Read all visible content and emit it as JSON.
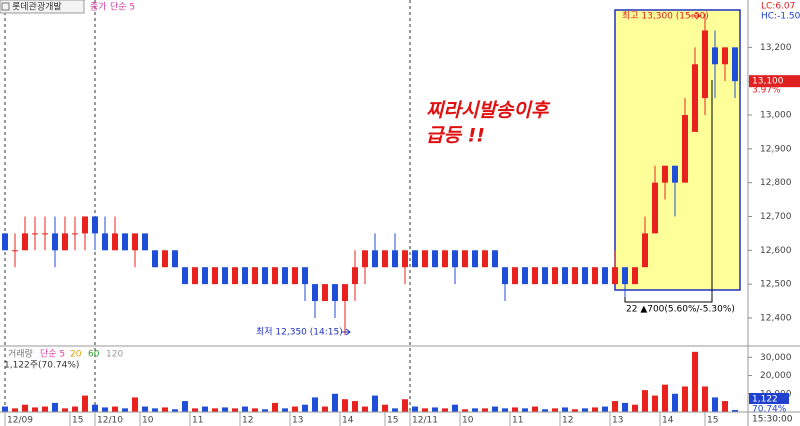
{
  "chart_data": {
    "type": "candlestick",
    "title": "롯데관광개발",
    "indicator": [
      "종가",
      "단순 5"
    ],
    "lc": "LC:6.07",
    "hc": "HC:-1.50",
    "open": [
      12650,
      12600,
      12600,
      12650,
      12650,
      12650,
      12600,
      12650,
      12650,
      12700,
      12650,
      12600,
      12650,
      12600,
      12650,
      12600,
      12550,
      12600,
      12550,
      12500,
      12550,
      12500,
      12550,
      12500,
      12550,
      12500,
      12550,
      12500,
      12550,
      12500,
      12550,
      12500,
      12450,
      12500,
      12450,
      12500,
      12550,
      12600,
      12550,
      12600,
      12550,
      12600,
      12550,
      12600,
      12550,
      12600,
      12550,
      12600,
      12550,
      12600,
      12550,
      12500,
      12550,
      12500,
      12550,
      12500,
      12550,
      12500,
      12550,
      12500,
      12550,
      12500,
      12550,
      12500,
      12550,
      12650,
      12800,
      12850,
      12800,
      12950,
      13050,
      13200,
      13150,
      13200
    ],
    "high": [
      12650,
      12650,
      12700,
      12700,
      12700,
      12700,
      12700,
      12700,
      12700,
      12700,
      12700,
      12700,
      12650,
      12650,
      12650,
      12600,
      12600,
      12600,
      12550,
      12550,
      12550,
      12550,
      12550,
      12550,
      12550,
      12550,
      12550,
      12550,
      12550,
      12550,
      12550,
      12500,
      12500,
      12500,
      12500,
      12600,
      12600,
      12650,
      12600,
      12650,
      12600,
      12600,
      12600,
      12600,
      12600,
      12600,
      12600,
      12600,
      12600,
      12600,
      12550,
      12550,
      12550,
      12550,
      12550,
      12550,
      12550,
      12550,
      12550,
      12550,
      12550,
      12600,
      12550,
      12550,
      12700,
      12850,
      12850,
      12850,
      13050,
      13200,
      13300,
      13250,
      13200,
      13200
    ],
    "low": [
      12600,
      12550,
      12600,
      12600,
      12600,
      12550,
      12600,
      12600,
      12600,
      12600,
      12600,
      12600,
      12600,
      12550,
      12600,
      12550,
      12550,
      12550,
      12500,
      12500,
      12500,
      12500,
      12500,
      12500,
      12500,
      12500,
      12500,
      12500,
      12500,
      12500,
      12450,
      12400,
      12450,
      12400,
      12350,
      12450,
      12500,
      12550,
      12550,
      12550,
      12500,
      12550,
      12550,
      12550,
      12550,
      12500,
      12550,
      12550,
      12550,
      12550,
      12450,
      12500,
      12500,
      12500,
      12500,
      12500,
      12500,
      12500,
      12500,
      12500,
      12500,
      12500,
      12450,
      12500,
      12550,
      12650,
      12750,
      12700,
      12800,
      12950,
      13000,
      13050,
      13100,
      13050
    ],
    "close": [
      12600,
      12600,
      12650,
      12650,
      12650,
      12600,
      12650,
      12650,
      12700,
      12650,
      12600,
      12650,
      12600,
      12650,
      12600,
      12550,
      12600,
      12550,
      12500,
      12550,
      12500,
      12550,
      12500,
      12550,
      12500,
      12550,
      12500,
      12550,
      12500,
      12550,
      12500,
      12450,
      12500,
      12450,
      12500,
      12550,
      12600,
      12550,
      12600,
      12550,
      12600,
      12550,
      12600,
      12550,
      12600,
      12550,
      12600,
      12550,
      12600,
      12550,
      12500,
      12550,
      12500,
      12550,
      12500,
      12550,
      12500,
      12550,
      12500,
      12550,
      12500,
      12550,
      12500,
      12550,
      12650,
      12800,
      12850,
      12800,
      13000,
      13150,
      13250,
      13150,
      13200,
      13100
    ],
    "up_color": "#e8231f",
    "down_color": "#1f4fd6",
    "xlim": [
      -0.5,
      74.3
    ],
    "xticks": [
      {
        "value": 0,
        "label": "12/09"
      },
      {
        "value": 6.5,
        "label": "15"
      },
      {
        "value": 9,
        "label": "12/10"
      },
      {
        "value": 13.5,
        "label": "10"
      },
      {
        "value": 18.5,
        "label": "11"
      },
      {
        "value": 23.5,
        "label": "12"
      },
      {
        "value": 28.5,
        "label": "13"
      },
      {
        "value": 33.5,
        "label": "14"
      },
      {
        "value": 38,
        "label": "15"
      },
      {
        "value": 40.5,
        "label": "12/11"
      },
      {
        "value": 45.5,
        "label": "10"
      },
      {
        "value": 50.5,
        "label": "11"
      },
      {
        "value": 55.5,
        "label": "12"
      },
      {
        "value": 60.5,
        "label": "13"
      },
      {
        "value": 65.5,
        "label": "14"
      },
      {
        "value": 70,
        "label": "15"
      }
    ],
    "ylim": [
      12320,
      13340
    ],
    "yticks": [
      {
        "value": 12400,
        "label": "12,400"
      },
      {
        "value": 12500,
        "label": "12,500"
      },
      {
        "value": 12600,
        "label": "12,600"
      },
      {
        "value": 12700,
        "label": "12,700"
      },
      {
        "value": 12800,
        "label": "12,800"
      },
      {
        "value": 12900,
        "label": "12,900"
      },
      {
        "value": 13000,
        "label": "13,000"
      },
      {
        "value": 13100,
        "label": "13,100"
      },
      {
        "value": 13200,
        "label": "13,200"
      }
    ],
    "current_price": {
      "value": 13100,
      "label": "13,100"
    },
    "change": "3.97%",
    "annotations": {
      "high": "최고 13,300 (15:00)",
      "low": "최저 12,350 (14:15)",
      "range": "22 ▲700(5.60%/-5.30%)",
      "note": [
        "찌라시발송이후",
        "급등 !!"
      ]
    },
    "volume": {
      "title": "거래량",
      "ma": [
        "단순 5",
        "20",
        "60",
        "120"
      ],
      "ma_colors": [
        "#e040a0",
        "#e0a000",
        "#30a030",
        "#999999"
      ],
      "summary": "1,122주(70.74%)",
      "values": [
        3000,
        2000,
        4000,
        2500,
        3000,
        5000,
        2000,
        3000,
        9000,
        4000,
        2500,
        3000,
        2000,
        8000,
        3000,
        2000,
        2500,
        1500,
        6000,
        2000,
        3000,
        2000,
        2500,
        2000,
        3000,
        2000,
        1500,
        5000,
        2000,
        3000,
        4000,
        8000,
        3000,
        10000,
        7000,
        6000,
        3000,
        9000,
        4000,
        2000,
        7000,
        3000,
        2000,
        2500,
        2000,
        4000,
        1500,
        2000,
        2000,
        3000,
        2000,
        2500,
        2000,
        3000,
        1500,
        2000,
        2500,
        1500,
        2000,
        2500,
        3000,
        6000,
        5000,
        4000,
        12000,
        9000,
        15000,
        10000,
        14000,
        33000,
        14000,
        8000,
        6000,
        1122
      ],
      "ylim": [
        0,
        34000
      ],
      "yticks": [
        {
          "value": 10000,
          "label": "10,000"
        },
        {
          "value": 20000,
          "label": "20,000"
        },
        {
          "value": 30000,
          "label": "30,000"
        }
      ],
      "last": "1,122",
      "ratio": "70.74%"
    },
    "time": "15:30:00"
  }
}
